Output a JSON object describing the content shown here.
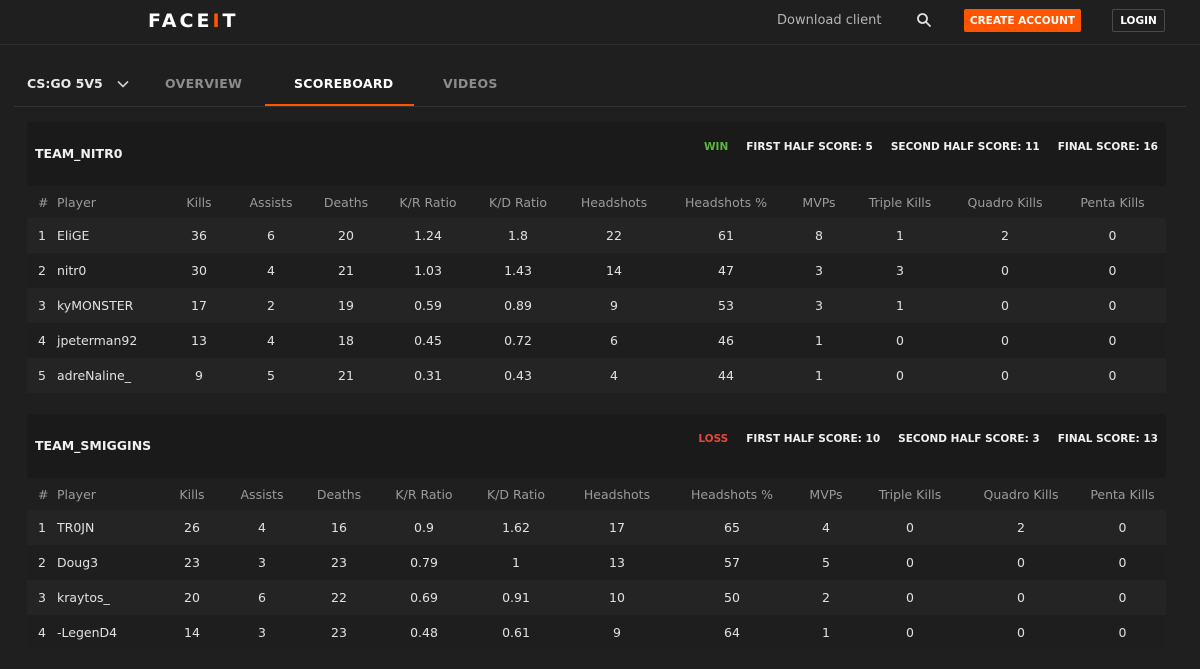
{
  "header": {
    "logo_main": "FACE",
    "logo_accent": "I",
    "logo_end": "T",
    "download": "Download client",
    "create_account": "CREATE ACCOUNT",
    "login": "LOGIN"
  },
  "subnav": {
    "game": "CS:GO 5V5",
    "tabs": [
      "OVERVIEW",
      "SCOREBOARD",
      "VIDEOS"
    ],
    "active_tab": "SCOREBOARD"
  },
  "columns": [
    "#",
    "Player",
    "Kills",
    "Assists",
    "Deaths",
    "K/R Ratio",
    "K/D Ratio",
    "Headshots",
    "Headshots %",
    "MVPs",
    "Triple Kills",
    "Quadro Kills",
    "Penta Kills"
  ],
  "teams": [
    {
      "name": "TEAM_NITR0",
      "result": "WIN",
      "first_half": "FIRST HALF SCORE: 5",
      "second_half": "SECOND HALF SCORE: 11",
      "final": "FINAL SCORE: 16",
      "players": [
        [
          "1",
          "EliGE",
          "36",
          "6",
          "20",
          "1.24",
          "1.8",
          "22",
          "61",
          "8",
          "1",
          "2",
          "0"
        ],
        [
          "2",
          "nitr0",
          "30",
          "4",
          "21",
          "1.03",
          "1.43",
          "14",
          "47",
          "3",
          "3",
          "0",
          "0"
        ],
        [
          "3",
          "kyMONSTER",
          "17",
          "2",
          "19",
          "0.59",
          "0.89",
          "9",
          "53",
          "3",
          "1",
          "0",
          "0"
        ],
        [
          "4",
          "jpeterman92",
          "13",
          "4",
          "18",
          "0.45",
          "0.72",
          "6",
          "46",
          "1",
          "0",
          "0",
          "0"
        ],
        [
          "5",
          "adreNaline_",
          "9",
          "5",
          "21",
          "0.31",
          "0.43",
          "4",
          "44",
          "1",
          "0",
          "0",
          "0"
        ]
      ]
    },
    {
      "name": "TEAM_SMIGGINS",
      "result": "LOSS",
      "first_half": "FIRST HALF SCORE: 10",
      "second_half": "SECOND HALF SCORE: 3",
      "final": "FINAL SCORE: 13",
      "players": [
        [
          "1",
          "TR0JN",
          "26",
          "4",
          "16",
          "0.9",
          "1.62",
          "17",
          "65",
          "4",
          "0",
          "2",
          "0"
        ],
        [
          "2",
          "Doug3",
          "23",
          "3",
          "23",
          "0.79",
          "1",
          "13",
          "57",
          "5",
          "0",
          "0",
          "0"
        ],
        [
          "3",
          "kraytos_",
          "20",
          "6",
          "22",
          "0.69",
          "0.91",
          "10",
          "50",
          "2",
          "0",
          "0",
          "0"
        ],
        [
          "4",
          "-LegenD4",
          "14",
          "3",
          "23",
          "0.48",
          "0.61",
          "9",
          "64",
          "1",
          "0",
          "0",
          "0"
        ]
      ]
    }
  ],
  "colors": {
    "accent": "#ff5500",
    "win": "#5db544",
    "loss": "#e24a3b"
  }
}
